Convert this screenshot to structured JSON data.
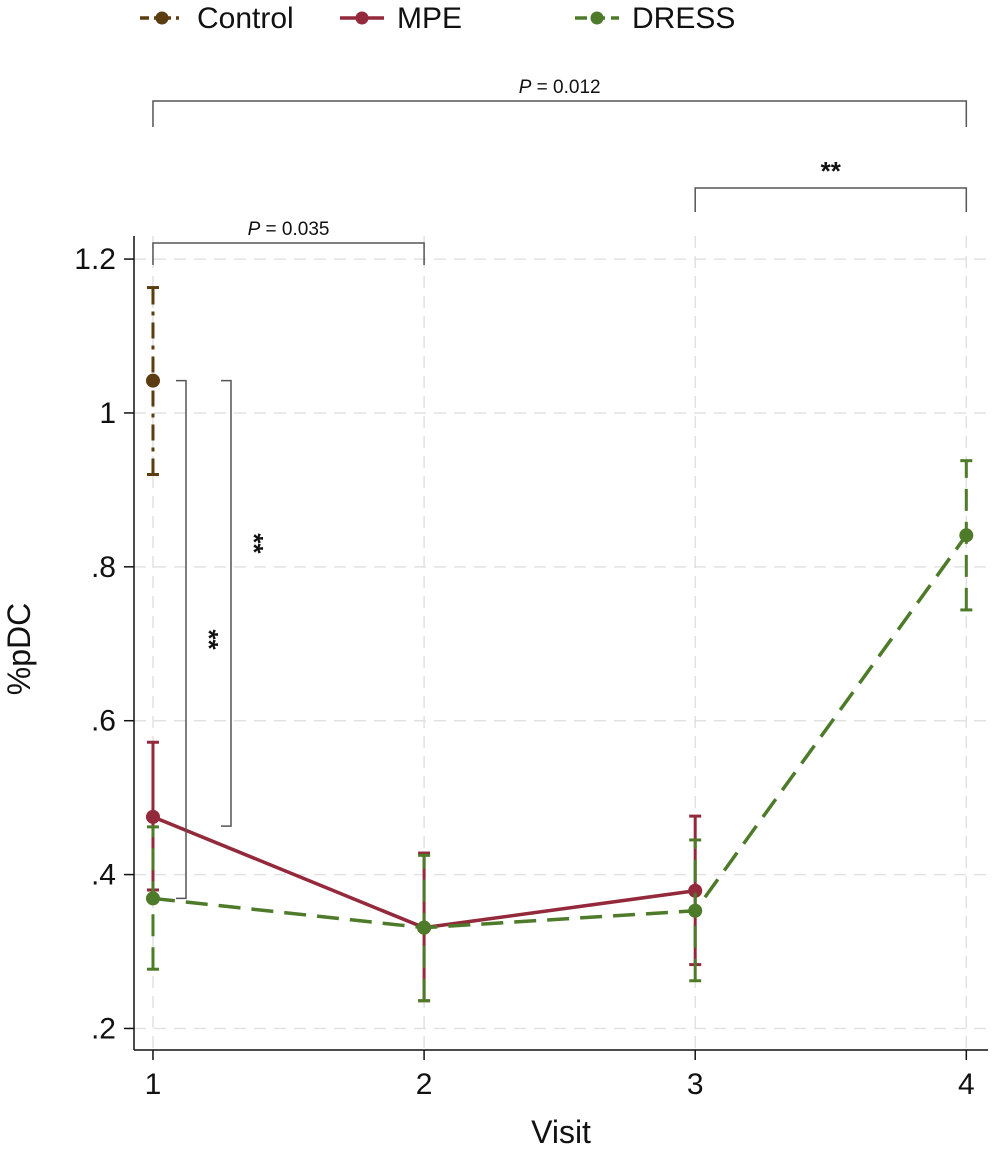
{
  "chart_data": {
    "type": "line",
    "xlabel": "Visit",
    "ylabel": "%pDC",
    "x_ticks": [
      "1",
      "2",
      "3",
      "4"
    ],
    "y_ticks": [
      {
        "value": 0.2,
        "label": ".2"
      },
      {
        "value": 0.4,
        "label": ".4"
      },
      {
        "value": 0.6,
        "label": ".6"
      },
      {
        "value": 0.8,
        "label": ".8"
      },
      {
        "value": 1.0,
        "label": "1"
      },
      {
        "value": 1.2,
        "label": "1.2"
      }
    ],
    "xlim": [
      0.93,
      4.08
    ],
    "ylim": [
      0.172,
      1.23
    ],
    "grid": true,
    "legend_position": "top",
    "series": [
      {
        "name": "Control",
        "color": "#5c3d12",
        "dash": "dashdot",
        "points": [
          {
            "x": 1,
            "y": 1.042,
            "lo": 0.92,
            "hi": 1.163
          }
        ]
      },
      {
        "name": "MPE",
        "color": "#93293a",
        "dash": "solid",
        "points": [
          {
            "x": 1,
            "y": 0.475,
            "lo": 0.38,
            "hi": 0.572
          },
          {
            "x": 2,
            "y": 0.331,
            "lo": 0.236,
            "hi": 0.428
          },
          {
            "x": 3,
            "y": 0.379,
            "lo": 0.283,
            "hi": 0.476
          }
        ]
      },
      {
        "name": "DRESS",
        "color": "#4e7b2a",
        "dash": "dashed",
        "points": [
          {
            "x": 1,
            "y": 0.369,
            "lo": 0.277,
            "hi": 0.462
          },
          {
            "x": 2,
            "y": 0.331,
            "lo": 0.236,
            "hi": 0.425
          },
          {
            "x": 3,
            "y": 0.353,
            "lo": 0.262,
            "hi": 0.445
          },
          {
            "x": 4,
            "y": 0.841,
            "lo": 0.744,
            "hi": 0.938
          }
        ]
      }
    ],
    "annotations": [
      {
        "kind": "bracket-h",
        "from": 1,
        "to": 4,
        "label_italic": "P",
        "label_rest": " = 0.012"
      },
      {
        "kind": "bracket-h",
        "from": 3,
        "to": 4,
        "label_italic": "",
        "label_rest": "**"
      },
      {
        "kind": "bracket-h",
        "from": 1,
        "to": 2,
        "label_italic": "P",
        "label_rest": " = 0.035"
      },
      {
        "kind": "bracket-v",
        "from_y": 1.042,
        "to_y": 0.369,
        "label_rest": "**"
      },
      {
        "kind": "bracket-v",
        "from_y": 1.042,
        "to_y": 0.463,
        "label_rest": "**"
      }
    ]
  }
}
